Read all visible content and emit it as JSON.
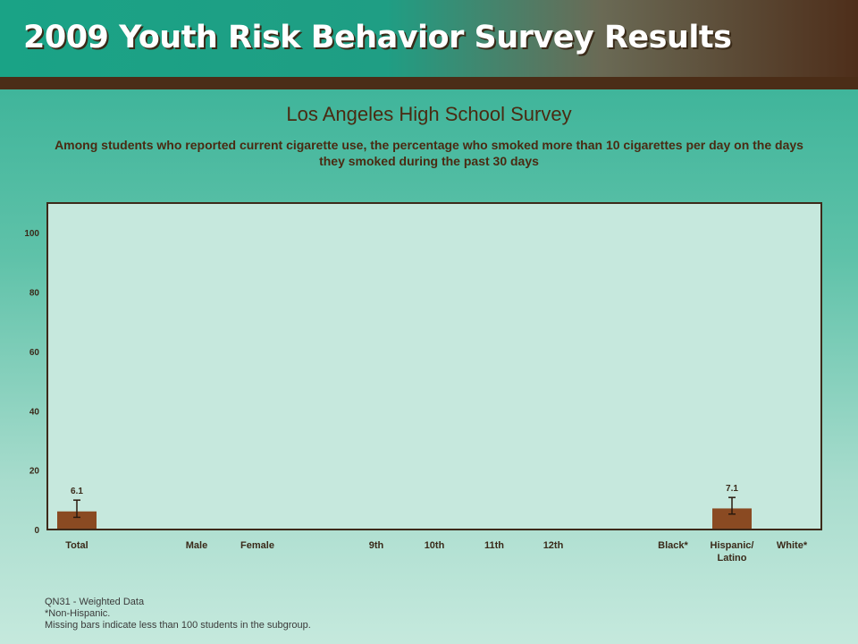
{
  "header": {
    "title": "2009 Youth Risk Behavior Survey Results"
  },
  "chart_data": {
    "type": "bar",
    "title": "Los Angeles High School Survey",
    "subtitle": "Among students who reported current cigarette use, the percentage who smoked more than 10 cigarettes per day on the days they smoked during the past 30 days",
    "categories": [
      "Total",
      "Male",
      "Female",
      "9th",
      "10th",
      "11th",
      "12th",
      "Black*",
      "Hispanic/ Latino",
      "White*"
    ],
    "values": [
      6.1,
      null,
      null,
      null,
      null,
      null,
      null,
      null,
      7.1,
      null
    ],
    "error_bars": [
      [
        4.1,
        9.9
      ],
      null,
      null,
      null,
      null,
      null,
      null,
      null,
      [
        5.2,
        10.8
      ],
      null
    ],
    "ylim": [
      0,
      110
    ],
    "yticks": [
      0,
      20,
      40,
      60,
      80,
      100
    ],
    "xlabel": "",
    "ylabel": "",
    "grid": false,
    "bar_color": "#8a4a22"
  },
  "footnotes": {
    "line1": "QN31 - Weighted Data",
    "line2": "*Non-Hispanic.",
    "line3": "Missing bars indicate less than 100 students in the subgroup."
  }
}
